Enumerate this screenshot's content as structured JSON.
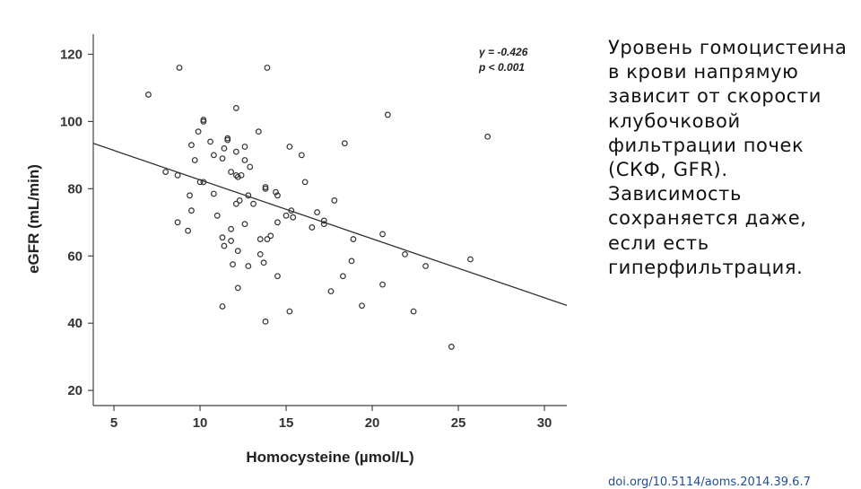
{
  "description_text": "Уровень гомоцистеина в крови напрямую зависит от скорости клубочковой фильтрации почек (СКФ, GFR). Зависимость сохраняется даже, если есть гиперфильтрация.",
  "source_link": "doi.org/10.5114/aoms.2014.39.6.7",
  "chart_data": {
    "type": "scatter",
    "xlabel": "Homocysteine (µmol/L)",
    "ylabel": "eGFR (mL/min)",
    "xlim": [
      3.8,
      31.3
    ],
    "ylim": [
      15.5,
      126
    ],
    "x_ticks": [
      5,
      10,
      15,
      20,
      25,
      30
    ],
    "y_ticks": [
      20,
      40,
      60,
      80,
      100,
      120
    ],
    "grid": false,
    "annotation": {
      "r_label": "γ = -0.426",
      "p_label": "p < 0.001"
    },
    "regression_line": {
      "x": [
        3.8,
        31.3
      ],
      "y": [
        93.5,
        45.3
      ]
    },
    "points": [
      [
        7.0,
        108
      ],
      [
        8.8,
        116
      ],
      [
        13.9,
        116
      ],
      [
        20.9,
        102
      ],
      [
        26.7,
        95.5
      ],
      [
        12.1,
        104
      ],
      [
        10.2,
        100.5
      ],
      [
        10.2,
        100
      ],
      [
        9.9,
        97
      ],
      [
        13.4,
        97
      ],
      [
        9.5,
        93
      ],
      [
        10.6,
        94
      ],
      [
        11.6,
        95
      ],
      [
        11.6,
        94.5
      ],
      [
        15.2,
        92.5
      ],
      [
        18.4,
        93.5
      ],
      [
        15.9,
        90
      ],
      [
        11.4,
        92
      ],
      [
        12.1,
        91
      ],
      [
        12.6,
        92.5
      ],
      [
        9.7,
        88.5
      ],
      [
        10.8,
        90
      ],
      [
        11.3,
        89
      ],
      [
        12.6,
        88.5
      ],
      [
        12.9,
        86.5
      ],
      [
        8.0,
        85
      ],
      [
        8.7,
        84
      ],
      [
        11.8,
        85
      ],
      [
        12.1,
        84
      ],
      [
        12.2,
        83.5
      ],
      [
        12.4,
        84
      ],
      [
        16.1,
        82
      ],
      [
        10.0,
        82
      ],
      [
        10.2,
        82
      ],
      [
        13.8,
        80.5
      ],
      [
        13.8,
        80
      ],
      [
        14.4,
        79
      ],
      [
        14.5,
        78
      ],
      [
        9.4,
        78
      ],
      [
        10.8,
        78.5
      ],
      [
        12.3,
        76.5
      ],
      [
        12.8,
        78
      ],
      [
        12.1,
        75.5
      ],
      [
        13.1,
        75.5
      ],
      [
        17.8,
        76.5
      ],
      [
        9.5,
        73.5
      ],
      [
        15.3,
        73.5
      ],
      [
        16.8,
        73
      ],
      [
        11.0,
        72
      ],
      [
        15.0,
        72
      ],
      [
        15.4,
        71.5
      ],
      [
        17.2,
        70.5
      ],
      [
        17.2,
        69.5
      ],
      [
        8.7,
        70
      ],
      [
        11.8,
        68
      ],
      [
        12.6,
        69.5
      ],
      [
        14.5,
        70
      ],
      [
        16.5,
        68.5
      ],
      [
        9.3,
        67.5
      ],
      [
        14.1,
        66
      ],
      [
        11.3,
        65.5
      ],
      [
        11.8,
        64.5
      ],
      [
        13.5,
        65
      ],
      [
        13.9,
        65
      ],
      [
        18.9,
        65
      ],
      [
        20.6,
        66.5
      ],
      [
        11.4,
        63
      ],
      [
        12.2,
        61.5
      ],
      [
        13.5,
        60.5
      ],
      [
        21.9,
        60.5
      ],
      [
        13.7,
        58
      ],
      [
        11.9,
        57.5
      ],
      [
        12.8,
        57
      ],
      [
        18.8,
        58.5
      ],
      [
        23.1,
        57
      ],
      [
        25.7,
        59
      ],
      [
        14.5,
        54
      ],
      [
        18.3,
        54
      ],
      [
        20.6,
        51.5
      ],
      [
        12.2,
        50.5
      ],
      [
        17.6,
        49.5
      ],
      [
        11.3,
        45
      ],
      [
        19.4,
        45.2
      ],
      [
        15.2,
        43.5
      ],
      [
        22.4,
        43.5
      ],
      [
        13.8,
        40.5
      ],
      [
        24.6,
        33
      ]
    ]
  }
}
